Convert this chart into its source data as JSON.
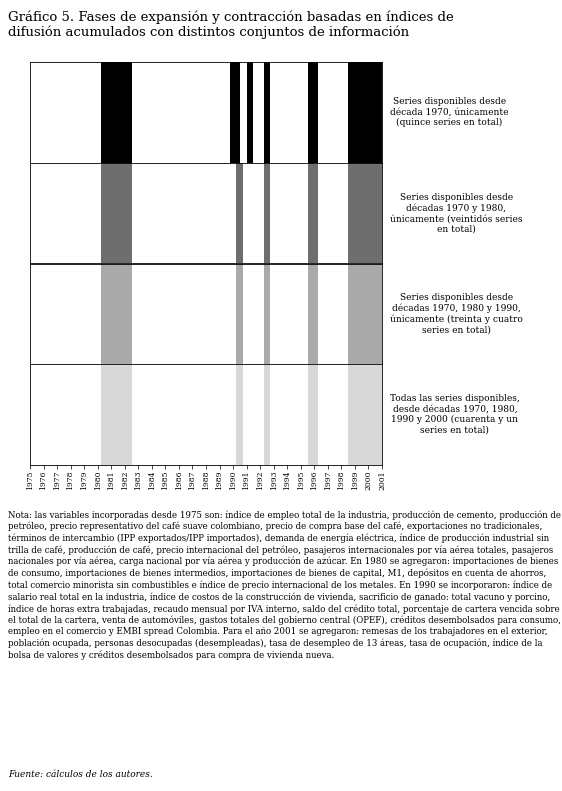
{
  "title": "Gráfico 5. Fases de expansión y contracción basadas en índices de\ndifusión acumulados con distintos conjuntos de información",
  "panel_labels": [
    "Series disponibles desde\ndécada 1970, únicamente\n(quince series en total)",
    "Series disponibles desde\ndécadas 1970 y 1980,\núnicamente (veintidós series\nen total)",
    "Series disponibles desde\ndécadas 1970, 1980 y 1990,\núnicamente (treinta y cuatro\nseries en total)",
    "Todas las series disponibles,\ndesde décadas 1970, 1980,\n1990 y 2000 (cuarenta y un\nseries en total)"
  ],
  "contraction_periods": [
    [
      [
        1980.25,
        1982.5
      ],
      [
        1989.75,
        1990.5
      ],
      [
        1991.0,
        1991.5
      ],
      [
        1992.25,
        1992.75
      ],
      [
        1995.5,
        1996.25
      ],
      [
        1998.5,
        2001.0
      ]
    ],
    [
      [
        1980.25,
        1982.5
      ],
      [
        1990.25,
        1990.75
      ],
      [
        1992.25,
        1992.75
      ],
      [
        1995.5,
        1996.25
      ],
      [
        1998.5,
        2001.0
      ]
    ],
    [
      [
        1980.25,
        1982.5
      ],
      [
        1990.25,
        1990.75
      ],
      [
        1992.25,
        1992.75
      ],
      [
        1995.5,
        1996.25
      ],
      [
        1998.5,
        2001.0
      ]
    ],
    [
      [
        1980.25,
        1982.5
      ],
      [
        1990.25,
        1990.75
      ],
      [
        1992.25,
        1992.75
      ],
      [
        1995.5,
        1996.25
      ],
      [
        1998.5,
        2001.0
      ]
    ]
  ],
  "panel_colors": [
    "#000000",
    "#6e6e6e",
    "#aaaaaa",
    "#d8d8d8"
  ],
  "xmin": 1975,
  "xmax": 2001,
  "note_text": "Nota: las variables incorporadas desde 1975 son: índice de empleo total de la industria, producción de cemento, producción de petróleo, precio representativo del café suave colombiano, precio de compra base del café, exportaciones no tradicionales, términos de intercambio (IPP exportados/IPP importados), demanda de energía eléctrica, índice de producción industrial sin trilla de café, producción de café, precio internacional del petróleo, pasajeros internacionales por vía aérea totales, pasajeros nacionales por vía aérea, carga nacional por vía aérea y producción de azúcar. En 1980 se agregaron: importaciones de bienes de consumo, importaciones de bienes intermedios, importaciones de bienes de capital, M1, depósitos en cuenta de ahorros, total comercio minorista sin combustibles e índice de precio internacional de los metales. En 1990 se incorporaron: índice de salario real total en la industria, índice de costos de la construcción de vivienda, sacrificio de ganado: total vacuno y porcino, índice de horas extra trabajadas, recaudo mensual por IVA interno, saldo del crédito total, porcentaje de cartera vencida sobre el total de la cartera, venta de automóviles, gastos totales del gobierno central (OPEF), créditos desembolsados para consumo, empleo en el comercio y EMBI spread Colombia. Para el año 2001 se agregaron: remesas de los trabajadores en el exterior, población ocupada, personas desocupadas (desempleadas), tasa de desempleo de 13 áreas, tasa de ocupación, índice de la bolsa de valores y créditos desembolsados para compra de vivienda nueva.",
  "source_text": "Fuente: cálculos de los autores."
}
